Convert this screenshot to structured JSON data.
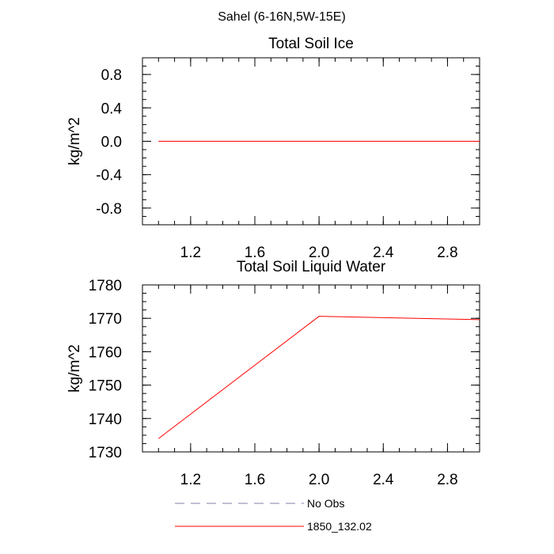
{
  "figure": {
    "title": "Sahel (6-16N,5W-15E)"
  },
  "chart_data": [
    {
      "type": "line",
      "title": "Total Soil Ice",
      "xlabel": "",
      "ylabel": "kg/m^2",
      "xlim": [
        0.9,
        3.0
      ],
      "ylim": [
        -1.0,
        1.0
      ],
      "x_ticks": [
        1.2,
        1.6,
        2.0,
        2.4,
        2.8
      ],
      "x_tick_labels": [
        "1.2",
        "1.6",
        "2.0",
        "2.4",
        "2.8"
      ],
      "y_ticks": [
        -0.8,
        -0.4,
        0.0,
        0.4,
        0.8
      ],
      "y_tick_labels": [
        "-0.8",
        "-0.4",
        "0.0",
        "0.4",
        "0.8"
      ],
      "grid": false,
      "series": [
        {
          "x": [
            1,
            2,
            3
          ],
          "values": [
            0.0,
            0.0,
            0.0
          ],
          "color": "#ff0000"
        }
      ]
    },
    {
      "type": "line",
      "title": "Total Soil Liquid Water",
      "xlabel": "",
      "ylabel": "kg/m^2",
      "xlim": [
        0.9,
        3.0
      ],
      "ylim": [
        1730,
        1780
      ],
      "x_ticks": [
        1.2,
        1.6,
        2.0,
        2.4,
        2.8
      ],
      "x_tick_labels": [
        "1.2",
        "1.6",
        "2.0",
        "2.4",
        "2.8"
      ],
      "y_ticks": [
        1730,
        1740,
        1750,
        1760,
        1770,
        1780
      ],
      "y_tick_labels": [
        "1730",
        "1740",
        "1750",
        "1760",
        "1770",
        "1780"
      ],
      "grid": false,
      "series": [
        {
          "x": [
            1,
            2,
            3
          ],
          "values": [
            1734,
            1770.6,
            1769.6
          ],
          "color": "#ff0000"
        }
      ]
    }
  ],
  "legend": {
    "placement": "bottom",
    "entries": [
      {
        "name": "No Obs",
        "color": "#7f7fa8",
        "style": "dashed"
      },
      {
        "name": "1850_132.02",
        "color": "#ff0000",
        "style": "solid"
      }
    ]
  }
}
